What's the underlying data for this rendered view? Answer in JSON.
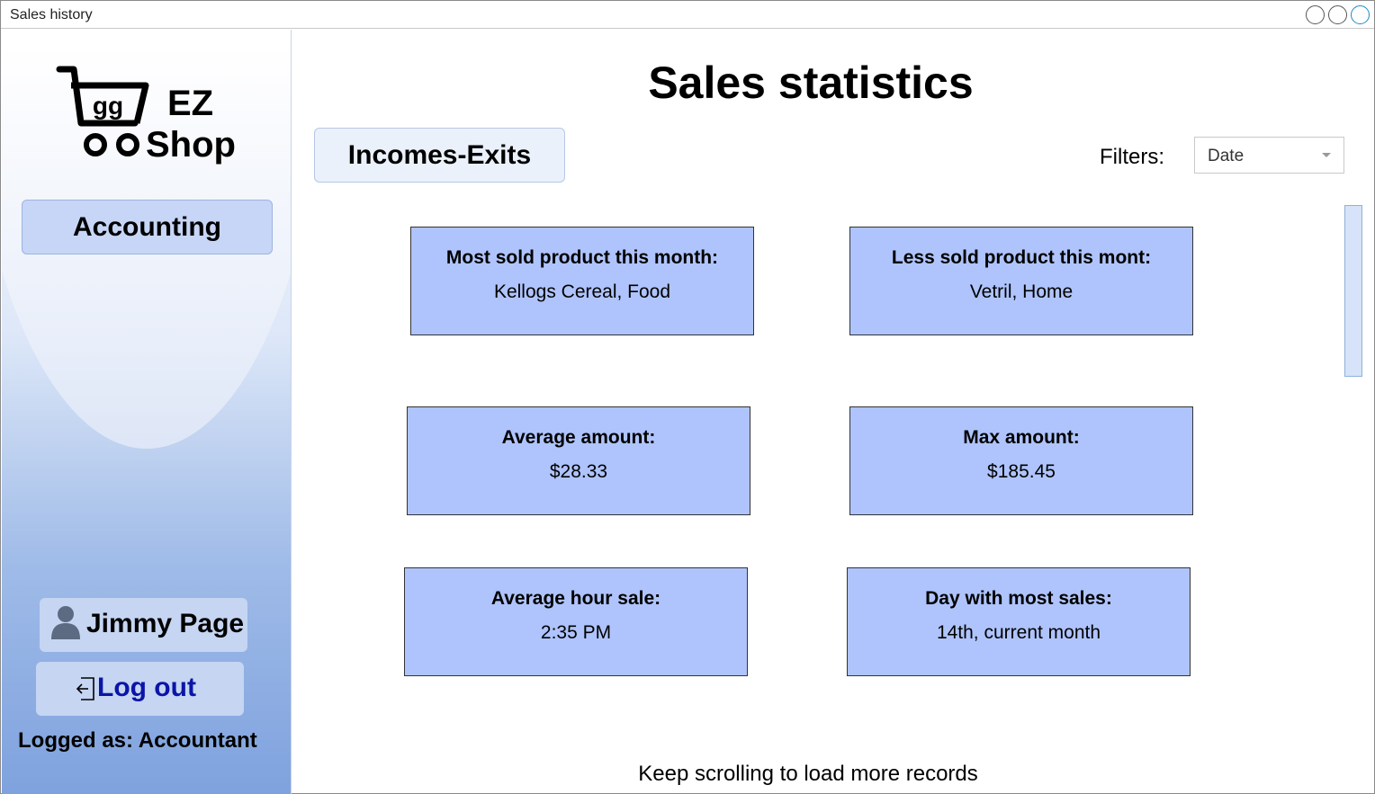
{
  "window": {
    "title": "Sales history"
  },
  "sidebar": {
    "logo": {
      "cart_text": "gg",
      "line1": "EZ",
      "line2": "Shop"
    },
    "nav_button": "Accounting",
    "user": {
      "name": "Jimmy Page",
      "icon": "user-icon"
    },
    "logout": {
      "label": "Log out",
      "icon": "logout-icon"
    },
    "logged_as": "Logged as: Accountant"
  },
  "main": {
    "title": "Sales statistics",
    "tab_button": "Incomes-Exits",
    "filters": {
      "label": "Filters:",
      "selected": "Date"
    },
    "cards": [
      {
        "title": "Most sold product this month:",
        "value": "Kellogs Cereal, Food"
      },
      {
        "title": "Less sold product this mont:",
        "value": "Vetril, Home"
      },
      {
        "title": "Average amount:",
        "value": "$28.33"
      },
      {
        "title": "Max amount:",
        "value": "$185.45"
      },
      {
        "title": "Average hour sale:",
        "value": "2:35 PM"
      },
      {
        "title": "Day with most sales:",
        "value": "14th, current month"
      }
    ],
    "footer_note": "Keep scrolling to load more records"
  },
  "colors": {
    "card_bg": "#afc4fc",
    "sidebar_button_bg": "#c7d6f6",
    "logout_text": "#0b15a8"
  }
}
